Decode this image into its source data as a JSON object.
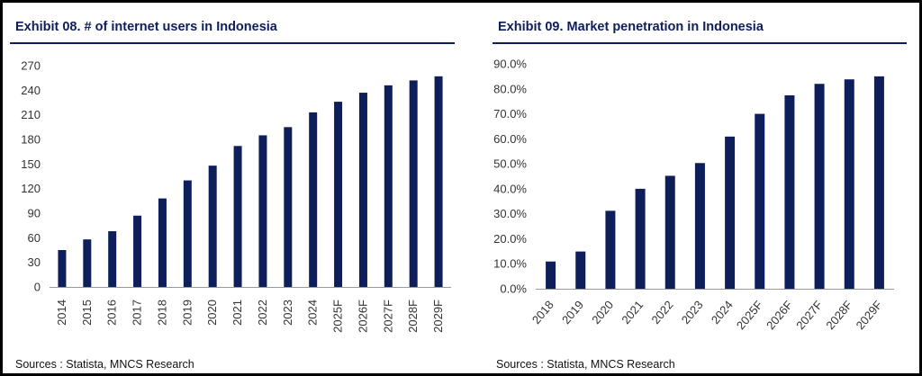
{
  "colors": {
    "bar": "#0e1e5b",
    "title": "#0e1e5b",
    "axis": "#999999"
  },
  "left_panel": {
    "title": "Exhibit 08. # of internet users in Indonesia",
    "source": "Sources : Statista, MNCS Research"
  },
  "right_panel": {
    "title": "Exhibit 09. Market penetration in Indonesia",
    "source": "Sources : Statista, MNCS Research"
  },
  "chart_data": [
    {
      "type": "bar",
      "title": "Exhibit 08. # of internet users in Indonesia",
      "xlabel": "",
      "ylabel": "",
      "categories": [
        "2014",
        "2015",
        "2016",
        "2017",
        "2018",
        "2019",
        "2020",
        "2021",
        "2022",
        "2023",
        "2024",
        "2025F",
        "2026F",
        "2027F",
        "2028F",
        "2029F"
      ],
      "values": [
        45,
        58,
        68,
        87,
        108,
        130,
        148,
        172,
        185,
        195,
        213,
        226,
        237,
        246,
        252,
        257
      ],
      "ylim": [
        0,
        270
      ],
      "yticks": [
        "0",
        "30",
        "60",
        "90",
        "120",
        "150",
        "180",
        "210",
        "240",
        "270"
      ],
      "grid": false,
      "legend": "none"
    },
    {
      "type": "bar",
      "title": "Exhibit 09. Market penetration in Indonesia",
      "xlabel": "",
      "ylabel": "",
      "categories": [
        "2018",
        "2019",
        "2020",
        "2021",
        "2022",
        "2023",
        "2024",
        "2025F",
        "2026F",
        "2027F",
        "2028F",
        "2029F"
      ],
      "values": [
        10.9,
        14.9,
        31.2,
        40.0,
        45.2,
        50.3,
        60.9,
        70.0,
        77.4,
        82.0,
        83.8,
        85.0
      ],
      "ylim": [
        0,
        90
      ],
      "yticks": [
        "0.0%",
        "10.0%",
        "20.0%",
        "30.0%",
        "40.0%",
        "50.0%",
        "60.0%",
        "70.0%",
        "80.0%",
        "90.0%"
      ],
      "grid": false,
      "legend": "none"
    }
  ]
}
